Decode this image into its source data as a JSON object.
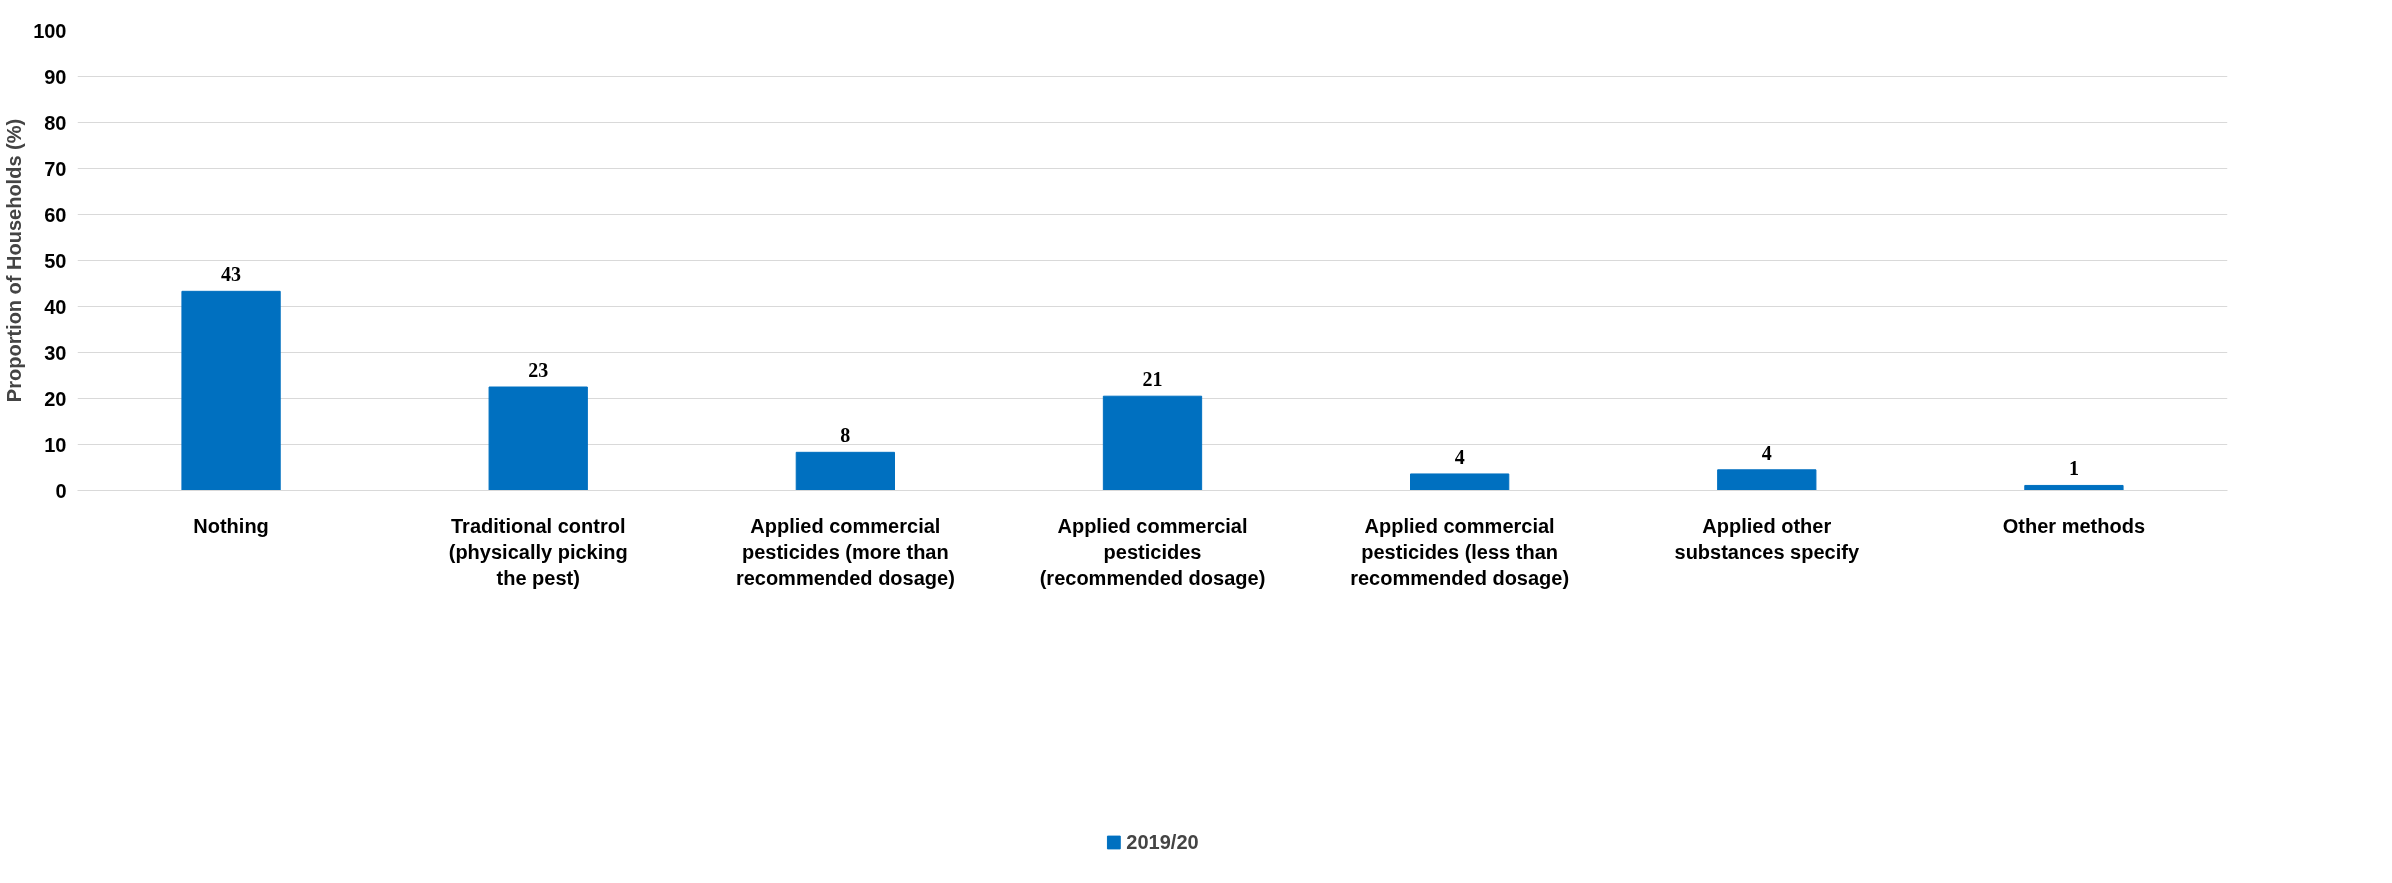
{
  "chart_data": {
    "type": "bar",
    "ylabel": "Proportion of Households (%)",
    "categories": [
      "Nothing",
      "Traditional control (physically picking the pest)",
      "Applied commercial pesticides (more than recommended dosage)",
      "Applied commercial pesticides (recommended dosage)",
      "Applied commercial pesticides (less than recommended dosage)",
      "Applied other substances specify",
      "Other methods"
    ],
    "series": [
      {
        "name": "2019/20",
        "color": "#0070c0",
        "values": [
          43.3,
          22.5,
          8.3,
          20.5,
          3.6,
          4.5,
          1.1
        ],
        "value_labels": [
          "43",
          "23",
          "8",
          "21",
          "4",
          "4",
          "1"
        ]
      }
    ],
    "ylim": [
      0,
      100
    ],
    "yticks": [
      0,
      10,
      20,
      30,
      40,
      50,
      60,
      70,
      80,
      90,
      100
    ],
    "grid": "y",
    "legend": "bottom"
  }
}
